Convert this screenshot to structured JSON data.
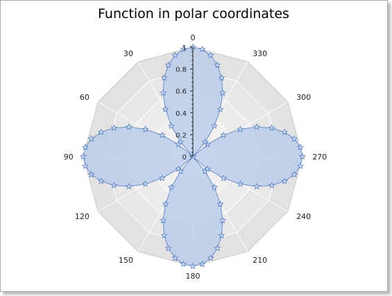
{
  "chart_data": {
    "type": "polar",
    "title": "Function in polar coordinates",
    "function": "r = |cos(2θ)|, θ in degrees",
    "angle_direction": "counterclockwise",
    "zero_at": "top",
    "angle_labels": [
      "0",
      "30",
      "60",
      "90",
      "120",
      "150",
      "180",
      "210",
      "240",
      "270",
      "300",
      "330"
    ],
    "radial_range": [
      0,
      1
    ],
    "radial_tick_labels": [
      "0",
      "0.2",
      "0.4",
      "0.6",
      "0.8",
      "1"
    ],
    "grid": true,
    "series": [
      {
        "marker": "star",
        "theta": [
          0,
          5,
          10,
          15,
          20,
          25,
          30,
          35,
          40,
          45,
          50,
          55,
          60,
          65,
          70,
          75,
          80,
          85,
          90,
          95,
          100,
          105,
          110,
          115,
          120,
          125,
          130,
          135,
          140,
          145,
          150,
          155,
          160,
          165,
          170,
          175,
          180,
          185,
          190,
          195,
          200,
          205,
          210,
          215,
          220,
          225,
          230,
          235,
          240,
          245,
          250,
          255,
          260,
          265,
          270,
          275,
          280,
          285,
          290,
          295,
          300,
          305,
          310,
          315,
          320,
          325,
          330,
          335,
          340,
          345,
          350,
          355
        ],
        "r": [
          1,
          0.985,
          0.94,
          0.866,
          0.766,
          0.643,
          0.5,
          0.342,
          0.174,
          0,
          0.174,
          0.342,
          0.5,
          0.643,
          0.766,
          0.866,
          0.94,
          0.985,
          1,
          0.985,
          0.94,
          0.866,
          0.766,
          0.643,
          0.5,
          0.342,
          0.174,
          0,
          0.174,
          0.342,
          0.5,
          0.643,
          0.766,
          0.866,
          0.94,
          0.985,
          1,
          0.985,
          0.94,
          0.866,
          0.766,
          0.643,
          0.5,
          0.342,
          0.174,
          0,
          0.174,
          0.342,
          0.5,
          0.643,
          0.766,
          0.866,
          0.94,
          0.985,
          1,
          0.985,
          0.94,
          0.866,
          0.766,
          0.643,
          0.5,
          0.342,
          0.174,
          0,
          0.174,
          0.342,
          0.5,
          0.643,
          0.766,
          0.866,
          0.94,
          0.985
        ]
      }
    ],
    "colors": {
      "fill": "#b8cceb",
      "line": "#6f8fc4",
      "marker_fill": "#cfe0f7",
      "marker_stroke": "#5b7fc0",
      "grid_dark": "#d6d6d6",
      "grid_light": "#f6f6f6"
    }
  }
}
